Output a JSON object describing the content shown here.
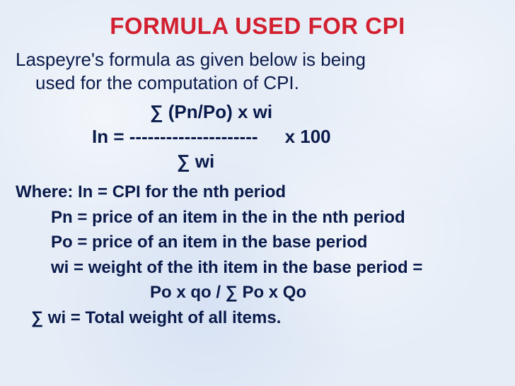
{
  "title": "FORMULA USED FOR  CPI",
  "intro_l1": "Laspeyre's formula as given below is being",
  "intro_l2": "used for the computation of CPI.",
  "formula": {
    "numerator": "∑ (Pn/Po) x wi",
    "middle_left": "In = ---------------------",
    "middle_right": "x 100",
    "denominator": "∑   wi"
  },
  "where": {
    "l1": "Where: In =  CPI for the nth period",
    "l2": "Pn =  price of an item in the in the nth period",
    "l3": "Po =  price of an item in the base period",
    "l4": "wi =  weight of the ith item in the base period =",
    "l4b": "Po x qo /  ∑ Po x Qo",
    "l5": "∑   wi =  Total weight of all items."
  },
  "colors": {
    "title": "#d22030",
    "body": "#0a1a4a",
    "background": "#e6edf7"
  }
}
